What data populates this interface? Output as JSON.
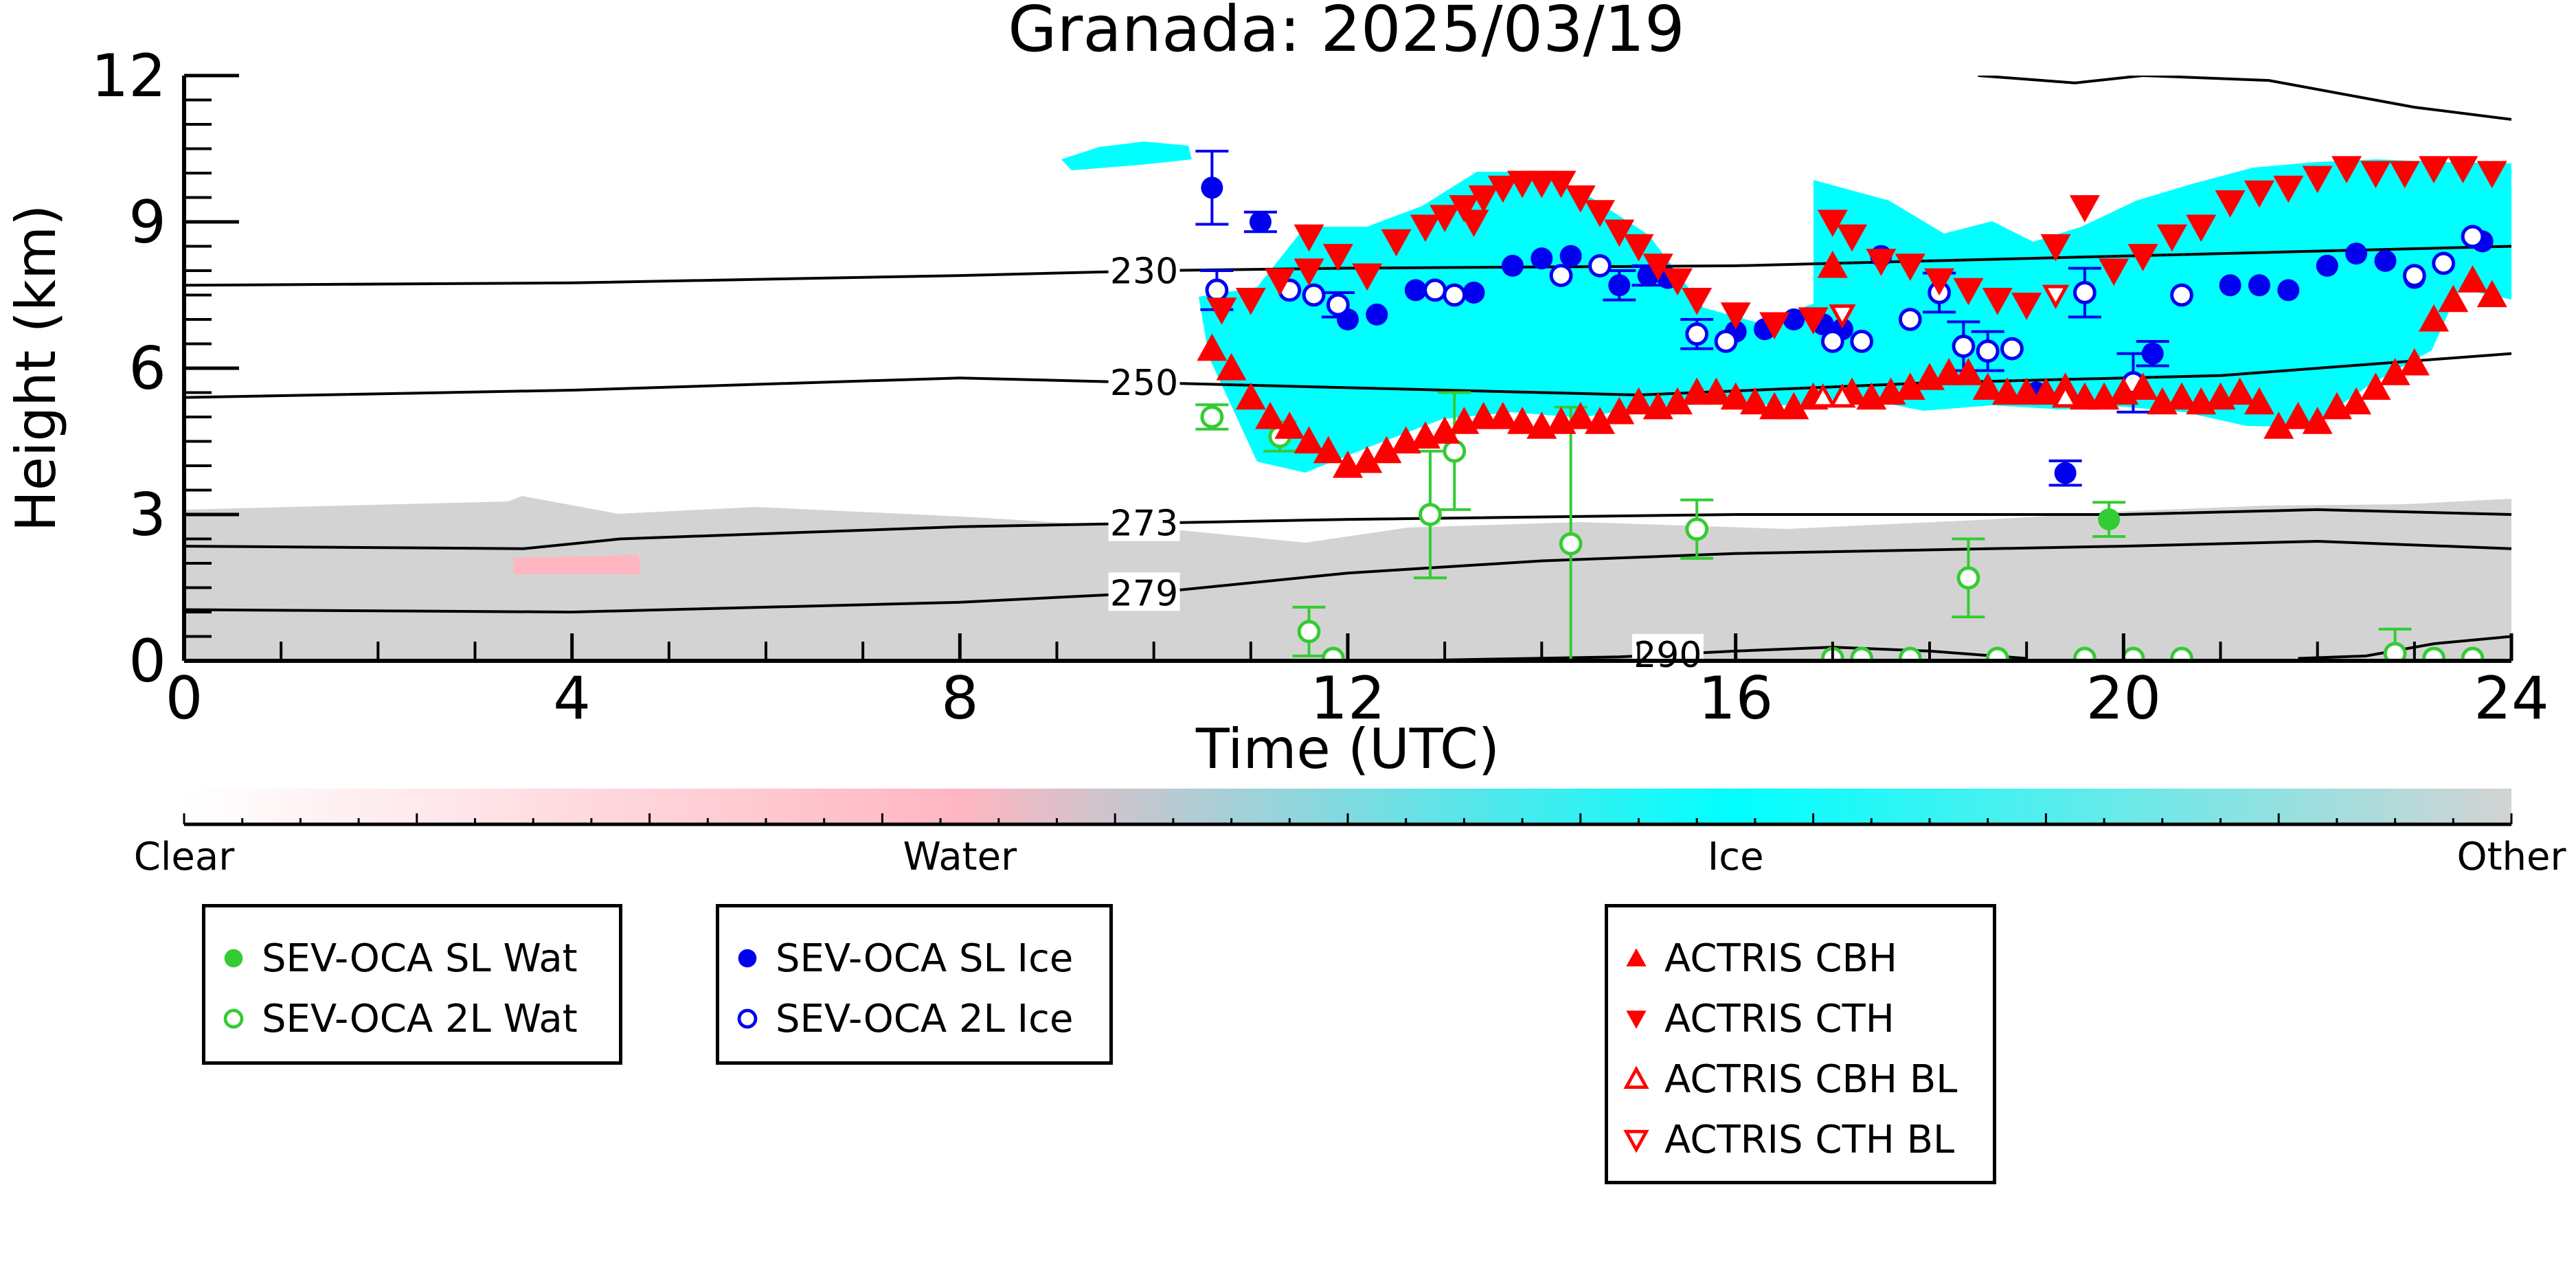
{
  "chart_data": {
    "type": "scatter",
    "title": "Granada: 2025/03/19",
    "xlabel": "Time (UTC)",
    "ylabel": "Height (km)",
    "xlim": [
      0,
      24
    ],
    "ylim": [
      0,
      12
    ],
    "xticks": [
      "0",
      "4",
      "8",
      "12",
      "16",
      "20",
      "24"
    ],
    "yticks": [
      "0",
      "3",
      "6",
      "9",
      "12"
    ],
    "colorbar": {
      "labels": [
        "Clear",
        "Water",
        "Ice",
        "Other"
      ],
      "colors": [
        "#ffffff",
        "#ffb6c1",
        "#00ffff",
        "#d3d3d3"
      ]
    },
    "temperature_contours": [
      {
        "label": "230",
        "label_x": 9.9,
        "points": [
          [
            0,
            7.7
          ],
          [
            4,
            7.75
          ],
          [
            8,
            7.9
          ],
          [
            10,
            8.0
          ],
          [
            12,
            8.05
          ],
          [
            16,
            8.1
          ],
          [
            20,
            8.3
          ],
          [
            24,
            8.5
          ]
        ]
      },
      {
        "label": "250",
        "label_x": 9.9,
        "points": [
          [
            0,
            5.4
          ],
          [
            4,
            5.55
          ],
          [
            8,
            5.8
          ],
          [
            10,
            5.7
          ],
          [
            12,
            5.6
          ],
          [
            15,
            5.45
          ],
          [
            18,
            5.7
          ],
          [
            21,
            5.85
          ],
          [
            24,
            6.3
          ]
        ]
      },
      {
        "label": "273",
        "label_x": 9.9,
        "points": [
          [
            0,
            2.35
          ],
          [
            3.5,
            2.3
          ],
          [
            4.5,
            2.5
          ],
          [
            8,
            2.75
          ],
          [
            12,
            2.9
          ],
          [
            16,
            3.0
          ],
          [
            20,
            3.0
          ],
          [
            22,
            3.1
          ],
          [
            24,
            3.0
          ]
        ]
      },
      {
        "label": "279",
        "label_x": 9.9,
        "points": [
          [
            0,
            1.05
          ],
          [
            4,
            1.0
          ],
          [
            8,
            1.2
          ],
          [
            10,
            1.4
          ],
          [
            12,
            1.8
          ],
          [
            14,
            2.05
          ],
          [
            16,
            2.2
          ],
          [
            20,
            2.35
          ],
          [
            22,
            2.45
          ],
          [
            24,
            2.3
          ]
        ]
      },
      {
        "label": "290",
        "label_x": 15.3,
        "points": [
          [
            12.5,
            0
          ],
          [
            14.8,
            0.08
          ],
          [
            16,
            0.2
          ],
          [
            17,
            0.28
          ],
          [
            18,
            0.2
          ],
          [
            19,
            0.05
          ]
        ]
      },
      {
        "label": "",
        "label_x": null,
        "points": [
          [
            21.8,
            0.05
          ],
          [
            22.5,
            0.1
          ],
          [
            23.2,
            0.35
          ],
          [
            24,
            0.5
          ]
        ]
      },
      {
        "label": "",
        "label_x": null,
        "points": [
          [
            18.5,
            12.0
          ],
          [
            19.5,
            11.85
          ],
          [
            20.2,
            12.0
          ],
          [
            21.5,
            11.9
          ],
          [
            23.0,
            11.35
          ],
          [
            24,
            11.1
          ]
        ]
      }
    ],
    "series": [
      {
        "name": "SEV-OCA SL Wat",
        "color": "#33cc33",
        "marker": "filled-circle",
        "x": [
          19.85
        ],
        "y": [
          2.9
        ],
        "yerr": [
          0.35
        ]
      },
      {
        "name": "SEV-OCA 2L Wat",
        "color": "#33cc33",
        "marker": "open-circle",
        "x": [
          10.6,
          11.3,
          11.6,
          11.85,
          12.85,
          13.1,
          14.3,
          15.6,
          18.4,
          22.8,
          23.2,
          17.0,
          17.3,
          17.8,
          18.7,
          19.6,
          20.1,
          20.6,
          23.6
        ],
        "y": [
          5.0,
          4.6,
          0.6,
          0.05,
          3.0,
          4.3,
          2.4,
          2.7,
          1.7,
          0.15,
          0.05,
          0.05,
          0.05,
          0.05,
          0.05,
          0.05,
          0.05,
          0.05,
          0.05
        ],
        "yerr": [
          0.25,
          0.3,
          0.5,
          0.0,
          1.3,
          1.2,
          2.8,
          0.6,
          0.8,
          0.5,
          0.0,
          0.0,
          0.0,
          0.0,
          0.0,
          0.0,
          0.0,
          0.0,
          0.0
        ]
      },
      {
        "name": "SEV-OCA SL Ice",
        "color": "#0000ee",
        "marker": "filled-circle",
        "x": [
          10.6,
          11.1,
          12.0,
          12.3,
          12.7,
          13.3,
          13.7,
          14.0,
          14.3,
          14.8,
          15.1,
          15.3,
          15.6,
          16.0,
          16.3,
          16.6,
          16.9,
          17.1,
          17.5,
          19.1,
          19.4,
          20.3,
          21.1,
          21.4,
          21.7,
          22.1,
          22.4,
          22.7,
          23.0,
          23.7
        ],
        "y": [
          9.7,
          9.0,
          7.0,
          7.1,
          7.6,
          7.55,
          8.1,
          8.25,
          8.3,
          7.7,
          7.9,
          7.85,
          6.7,
          6.75,
          6.8,
          7.0,
          6.9,
          6.8,
          8.3,
          5.5,
          3.85,
          6.3,
          7.7,
          7.7,
          7.6,
          8.1,
          8.35,
          8.2,
          7.85,
          8.6
        ],
        "yerr": [
          0.75,
          0.2,
          0.0,
          0.0,
          0.0,
          0.0,
          0.0,
          0.0,
          0.0,
          0.3,
          0.2,
          0.0,
          0.0,
          0.0,
          0.0,
          0.0,
          0.0,
          0.0,
          0.0,
          0.0,
          0.25,
          0.25,
          0.0,
          0.0,
          0.0,
          0.0,
          0.0,
          0.0,
          0.0,
          0.0
        ]
      },
      {
        "name": "SEV-OCA 2L Ice",
        "color": "#0000ee",
        "marker": "open-circle",
        "x": [
          10.65,
          11.4,
          11.65,
          11.9,
          12.9,
          13.1,
          14.2,
          14.6,
          15.6,
          15.9,
          17.0,
          17.3,
          17.8,
          18.1,
          18.35,
          18.6,
          18.85,
          19.6,
          20.1,
          20.6,
          23.0,
          23.3,
          23.6
        ],
        "y": [
          7.6,
          7.6,
          7.5,
          7.3,
          7.6,
          7.5,
          7.9,
          8.1,
          6.7,
          6.55,
          6.55,
          6.55,
          7.0,
          7.55,
          6.45,
          6.35,
          6.4,
          7.55,
          5.7,
          7.5,
          7.9,
          8.15,
          8.7
        ],
        "yerr": [
          0.4,
          0.0,
          0.0,
          0.25,
          0.0,
          0.0,
          0.0,
          0.0,
          0.3,
          0.0,
          0.0,
          0.0,
          0.0,
          0.4,
          0.5,
          0.4,
          0.0,
          0.5,
          0.6,
          0.0,
          0.0,
          0.0,
          0.0
        ]
      },
      {
        "name": "ACTRIS CBH",
        "color": "#ff0000",
        "marker": "triangle-up",
        "x": [
          10.6,
          10.8,
          11.0,
          11.2,
          11.4,
          11.6,
          11.8,
          12.0,
          12.2,
          12.4,
          12.6,
          12.8,
          13.0,
          13.2,
          13.4,
          13.6,
          13.8,
          14.0,
          14.2,
          14.4,
          14.6,
          14.8,
          15.0,
          15.2,
          15.4,
          15.6,
          15.8,
          16.0,
          16.2,
          16.4,
          16.6,
          16.8,
          17.2,
          17.4,
          17.6,
          17.8,
          18.0,
          18.2,
          18.4,
          18.6,
          18.8,
          19.0,
          19.2,
          19.4,
          19.6,
          19.8,
          20.0,
          20.2,
          20.4,
          20.6,
          20.8,
          21.0,
          21.2,
          21.4,
          21.6,
          21.8,
          22.0,
          22.2,
          22.4,
          22.6,
          22.8,
          23.0,
          23.2,
          23.4,
          23.6,
          23.8,
          17.0
        ],
        "y": [
          6.4,
          6.0,
          5.4,
          5.0,
          4.8,
          4.5,
          4.3,
          4.0,
          4.1,
          4.3,
          4.5,
          4.6,
          4.7,
          4.9,
          5.0,
          5.0,
          4.9,
          4.8,
          4.9,
          5.0,
          4.9,
          5.1,
          5.3,
          5.2,
          5.3,
          5.5,
          5.5,
          5.4,
          5.3,
          5.2,
          5.2,
          5.4,
          5.5,
          5.4,
          5.5,
          5.6,
          5.8,
          5.9,
          5.9,
          5.6,
          5.5,
          5.5,
          5.5,
          5.6,
          5.4,
          5.4,
          5.5,
          5.6,
          5.3,
          5.4,
          5.3,
          5.4,
          5.5,
          5.3,
          4.8,
          5.0,
          4.9,
          5.2,
          5.3,
          5.6,
          5.9,
          6.1,
          7.0,
          7.4,
          7.8,
          7.5,
          8.1
        ],
        "yerr": []
      },
      {
        "name": "ACTRIS CTH",
        "color": "#ff0000",
        "marker": "triangle-down",
        "x": [
          10.7,
          11.0,
          11.3,
          11.6,
          11.9,
          12.2,
          12.5,
          12.8,
          13.0,
          13.2,
          13.4,
          13.6,
          13.8,
          14.0,
          14.2,
          14.4,
          14.6,
          14.8,
          15.0,
          15.2,
          15.4,
          15.6,
          16.0,
          16.4,
          16.8,
          17.0,
          17.2,
          17.5,
          17.8,
          18.1,
          18.4,
          18.7,
          19.0,
          19.3,
          19.6,
          19.9,
          20.2,
          20.5,
          20.8,
          21.1,
          21.4,
          21.7,
          22.0,
          22.3,
          22.6,
          22.9,
          23.2,
          23.5,
          23.8,
          11.6,
          13.3
        ],
        "y": [
          7.2,
          7.4,
          7.8,
          8.0,
          8.3,
          7.9,
          8.6,
          8.9,
          9.1,
          9.3,
          9.5,
          9.7,
          9.8,
          9.8,
          9.8,
          9.5,
          9.2,
          8.8,
          8.5,
          8.1,
          7.8,
          7.4,
          7.1,
          6.9,
          7.0,
          9.0,
          8.7,
          8.2,
          8.1,
          7.8,
          7.6,
          7.4,
          7.3,
          8.5,
          9.3,
          8.0,
          8.3,
          8.7,
          8.9,
          9.4,
          9.6,
          9.7,
          9.9,
          10.1,
          10.0,
          10.0,
          10.1,
          10.1,
          10.0,
          8.7,
          9.0
        ],
        "yerr": []
      },
      {
        "name": "ACTRIS CBH BL",
        "color": "#ff0000",
        "marker": "open-triangle-up",
        "x": [
          16.9,
          17.1,
          19.4
        ],
        "y": [
          5.4,
          5.4,
          5.4
        ],
        "yerr": []
      },
      {
        "name": "ACTRIS CTH BL",
        "color": "#ff0000",
        "marker": "open-triangle-down",
        "x": [
          17.1,
          19.3
        ],
        "y": [
          7.1,
          7.5
        ],
        "yerr": []
      }
    ]
  },
  "legends": [
    {
      "entries": [
        {
          "label": "SEV-OCA SL Wat",
          "color": "#33cc33",
          "marker": "filled-circle"
        },
        {
          "label": "SEV-OCA 2L Wat",
          "color": "#33cc33",
          "marker": "open-circle"
        }
      ]
    },
    {
      "entries": [
        {
          "label": "SEV-OCA SL Ice",
          "color": "#0000ee",
          "marker": "filled-circle"
        },
        {
          "label": "SEV-OCA 2L Ice",
          "color": "#0000ee",
          "marker": "open-circle"
        }
      ]
    },
    {
      "entries": [
        {
          "label": "ACTRIS CBH",
          "color": "#ff0000",
          "marker": "triangle-up"
        },
        {
          "label": "ACTRIS CTH",
          "color": "#ff0000",
          "marker": "triangle-down"
        },
        {
          "label": "ACTRIS CBH BL",
          "color": "#ff0000",
          "marker": "open-triangle-up"
        },
        {
          "label": "ACTRIS CTH BL",
          "color": "#ff0000",
          "marker": "open-triangle-down"
        }
      ]
    }
  ]
}
